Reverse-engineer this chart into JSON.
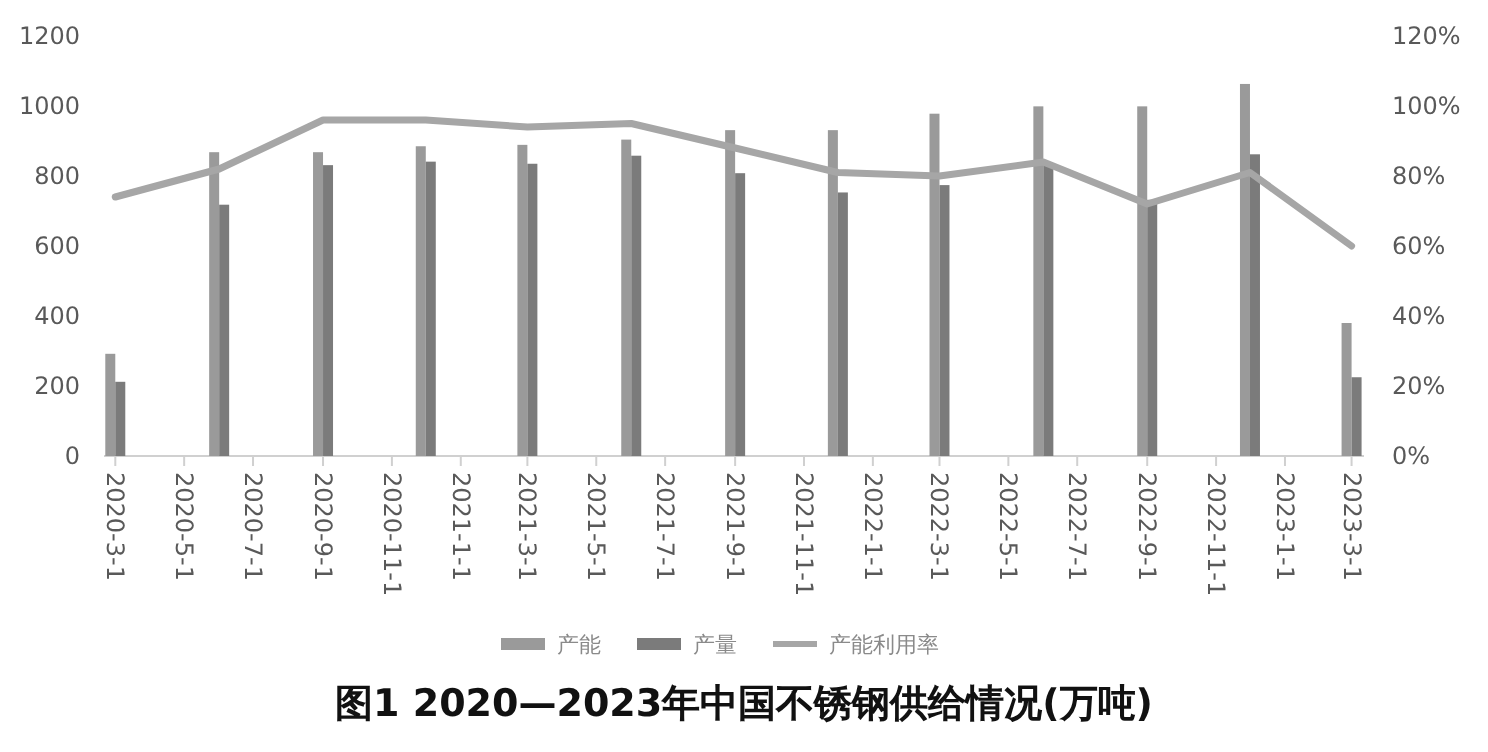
{
  "chart_data": {
    "type": "bar",
    "title": "图1  2020—2023年中国不锈钢供给情况(万吨)",
    "x": [
      "2020-03-01",
      "2020-06-01",
      "2020-09-01",
      "2020-12-01",
      "2021-03-01",
      "2021-06-01",
      "2021-09-01",
      "2021-12-01",
      "2022-03-01",
      "2022-06-01",
      "2022-09-01",
      "2022-12-01",
      "2023-03-01"
    ],
    "series": [
      {
        "name": "产能",
        "color": "#9a9a9a",
        "values": [
          292,
          868,
          868,
          885,
          889,
          904,
          931,
          931,
          978,
          999,
          999,
          1063,
          380
        ]
      },
      {
        "name": "产量",
        "color": "#7b7b7b",
        "values": [
          212,
          718,
          831,
          841,
          835,
          858,
          808,
          753,
          774,
          837,
          732,
          862,
          225
        ]
      },
      {
        "name": "产能利用率",
        "type": "line",
        "axis": "y2",
        "color": "#a6a6a6",
        "values": [
          74,
          82,
          96,
          96,
          94,
          95,
          88,
          81,
          80,
          84,
          72,
          81,
          60
        ]
      }
    ],
    "xlim": [
      "2020-02-20",
      "2023-03-12"
    ],
    "xticks": [
      {
        "value": "2020-03-01",
        "label": "2020-3-1"
      },
      {
        "value": "2020-05-01",
        "label": "2020-5-1"
      },
      {
        "value": "2020-07-01",
        "label": "2020-7-1"
      },
      {
        "value": "2020-09-01",
        "label": "2020-9-1"
      },
      {
        "value": "2020-11-01",
        "label": "2020-11-1"
      },
      {
        "value": "2021-01-01",
        "label": "2021-1-1"
      },
      {
        "value": "2021-03-01",
        "label": "2021-3-1"
      },
      {
        "value": "2021-05-01",
        "label": "2021-5-1"
      },
      {
        "value": "2021-07-01",
        "label": "2021-7-1"
      },
      {
        "value": "2021-09-01",
        "label": "2021-9-1"
      },
      {
        "value": "2021-11-01",
        "label": "2021-11-1"
      },
      {
        "value": "2022-01-01",
        "label": "2022-1-1"
      },
      {
        "value": "2022-03-01",
        "label": "2022-3-1"
      },
      {
        "value": "2022-05-01",
        "label": "2022-5-1"
      },
      {
        "value": "2022-07-01",
        "label": "2022-7-1"
      },
      {
        "value": "2022-09-01",
        "label": "2022-9-1"
      },
      {
        "value": "2022-11-01",
        "label": "2022-11-1"
      },
      {
        "value": "2023-01-01",
        "label": "2023-1-1"
      },
      {
        "value": "2023-03-01",
        "label": "2023-3-1"
      }
    ],
    "ylim": [
      0,
      1200
    ],
    "yticks": [
      0,
      200,
      400,
      600,
      800,
      1000,
      1200
    ],
    "y2lim": [
      0,
      120
    ],
    "y2ticks": [
      {
        "value": 0,
        "label": "0%"
      },
      {
        "value": 20,
        "label": "20%"
      },
      {
        "value": 40,
        "label": "40%"
      },
      {
        "value": 60,
        "label": "60%"
      },
      {
        "value": 80,
        "label": "80%"
      },
      {
        "value": 100,
        "label": "100%"
      },
      {
        "value": 120,
        "label": "120%"
      }
    ],
    "legend": "bottom"
  }
}
